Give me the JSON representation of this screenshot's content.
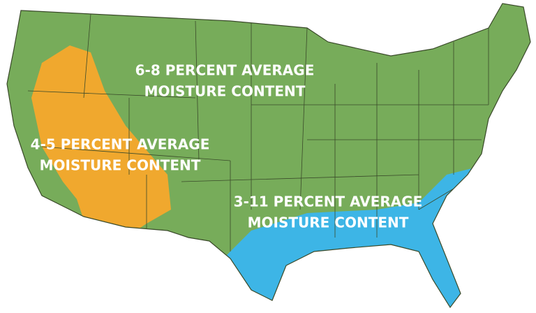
{
  "regions": [
    {
      "lines": [
        "6-8 PERCENT AVERAGE",
        "MOISTURE CONTENT"
      ]
    },
    {
      "lines": [
        "4-5 PERCENT AVERAGE",
        "MOISTURE CONTENT"
      ]
    },
    {
      "lines": [
        "3-11 PERCENT AVERAGE",
        "MOISTURE CONTENT"
      ]
    }
  ]
}
